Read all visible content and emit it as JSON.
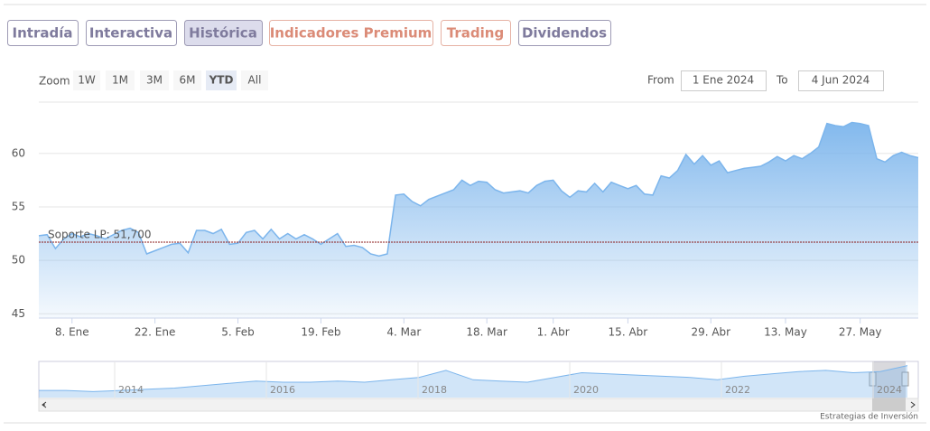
{
  "tabs": [
    "Intradía",
    "Interactiva",
    "Histórica",
    "Indicadores Premium",
    "Trading",
    "Dividendos"
  ],
  "zoom": {
    "label": "Zoom",
    "buttons": [
      "1W",
      "1M",
      "3M",
      "6M",
      "YTD",
      "All"
    ]
  },
  "range": {
    "from_label": "From",
    "from": "1 Ene 2024",
    "to_label": "To",
    "to": "4 Jun 2024"
  },
  "chart_data": {
    "type": "area",
    "color": "#7cb5ec",
    "categories": [
      null,
      null,
      null,
      null,
      "8. Ene",
      null,
      null,
      null,
      null,
      null,
      null,
      null,
      null,
      null,
      "22. Ene",
      null,
      null,
      null,
      null,
      null,
      null,
      null,
      null,
      null,
      "5. Feb",
      null,
      null,
      null,
      null,
      null,
      null,
      null,
      null,
      null,
      "19. Feb",
      null,
      null,
      null,
      null,
      null,
      null,
      null,
      null,
      null,
      "4. Mar",
      null,
      null,
      null,
      null,
      null,
      null,
      null,
      null,
      null,
      "18. Mar",
      null,
      null,
      null,
      null,
      null,
      null,
      null,
      "1. Abr",
      null,
      null,
      null,
      null,
      null,
      null,
      null,
      null,
      "15. Abr",
      null,
      null,
      null,
      null,
      null,
      null,
      null,
      null,
      null,
      "29. Abr",
      null,
      null,
      null,
      null,
      null,
      null,
      null,
      null,
      "13. May",
      null,
      null,
      null,
      null,
      null,
      null,
      null,
      null,
      "27. May",
      null,
      null,
      null,
      null,
      null,
      null,
      null
    ],
    "values": [
      52.3,
      52.4,
      51.1,
      52.0,
      52.5,
      52.2,
      52.5,
      52.3,
      52.0,
      52.4,
      52.8,
      53.0,
      52.6,
      50.6,
      50.9,
      51.2,
      51.5,
      51.6,
      50.7,
      52.8,
      52.8,
      52.5,
      52.9,
      51.5,
      51.6,
      52.6,
      52.8,
      52.0,
      52.9,
      52.0,
      52.5,
      52.0,
      52.4,
      52.0,
      51.5,
      52.0,
      52.5,
      51.3,
      51.4,
      51.2,
      50.6,
      50.4,
      50.6,
      56.1,
      56.2,
      55.5,
      55.1,
      55.7,
      56.0,
      56.3,
      56.6,
      57.5,
      57.0,
      57.4,
      57.3,
      56.6,
      56.3,
      56.4,
      56.5,
      56.3,
      57.0,
      57.4,
      57.5,
      56.5,
      55.9,
      56.5,
      56.4,
      57.2,
      56.4,
      57.3,
      57.0,
      56.7,
      57.0,
      56.2,
      56.1,
      57.9,
      57.7,
      58.4,
      59.9,
      59.0,
      59.8,
      58.9,
      59.3,
      58.2,
      58.4,
      58.6,
      58.7,
      58.8,
      59.2,
      59.7,
      59.3,
      59.8,
      59.5,
      60.0,
      60.6,
      62.8,
      62.6,
      62.5,
      62.9,
      62.8,
      62.6,
      59.5,
      59.2,
      59.8,
      60.1,
      59.8,
      59.6
    ],
    "ylim": [
      44.6,
      64.8
    ],
    "yticks": [
      45,
      50,
      55,
      60
    ],
    "grid": true,
    "annotations": [
      {
        "label": "Soporte LP: 51,700",
        "value": 51.7,
        "color": "#8b1a1a"
      }
    ]
  },
  "navigator": {
    "labels": [
      "2014",
      "2016",
      "2018",
      "2020",
      "2022",
      "2024"
    ],
    "values": [
      41,
      41,
      40,
      41,
      42,
      43,
      45,
      47,
      49,
      48,
      48,
      49,
      48,
      50,
      52,
      58,
      50,
      49,
      48,
      52,
      56,
      55,
      54,
      53,
      52,
      50,
      53,
      55,
      57,
      58,
      56,
      57,
      62
    ]
  },
  "credit": "Estrategias de Inversión"
}
